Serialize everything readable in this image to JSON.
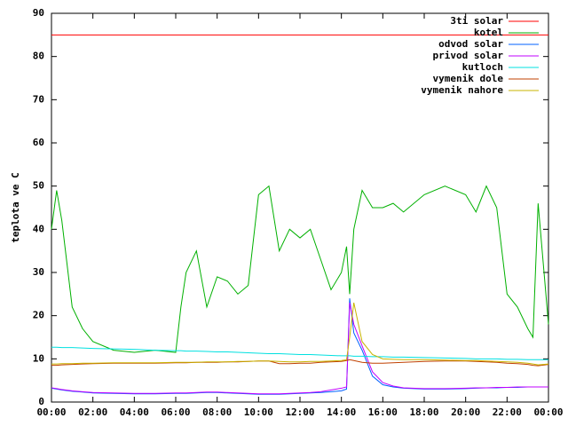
{
  "chart_data": {
    "type": "line",
    "ylabel": "teplota ve C",
    "x": [
      0,
      0.25,
      0.5,
      1,
      1.5,
      2,
      3,
      4,
      5,
      6,
      6.25,
      6.5,
      7,
      7.5,
      8,
      8.5,
      9,
      9.5,
      10,
      10.5,
      11,
      11.5,
      12,
      12.5,
      13,
      13.5,
      14,
      14.25,
      14.4,
      14.6,
      15,
      15.5,
      16,
      16.5,
      17,
      18,
      19,
      20,
      20.5,
      21,
      21.5,
      22,
      22.5,
      23,
      23.25,
      23.5,
      24
    ],
    "xlim": [
      0,
      24
    ],
    "xticks": [
      {
        "value": 0,
        "label": "00:00"
      },
      {
        "value": 2,
        "label": "02:00"
      },
      {
        "value": 4,
        "label": "04:00"
      },
      {
        "value": 6,
        "label": "06:00"
      },
      {
        "value": 8,
        "label": "08:00"
      },
      {
        "value": 10,
        "label": "10:00"
      },
      {
        "value": 12,
        "label": "12:00"
      },
      {
        "value": 14,
        "label": "14:00"
      },
      {
        "value": 16,
        "label": "16:00"
      },
      {
        "value": 18,
        "label": "18:00"
      },
      {
        "value": 20,
        "label": "20:00"
      },
      {
        "value": 22,
        "label": "22:00"
      },
      {
        "value": 24,
        "label": "00:00"
      }
    ],
    "ylim": [
      0,
      90
    ],
    "yticks": [
      0,
      10,
      20,
      30,
      40,
      50,
      60,
      70,
      80,
      90
    ],
    "grid": false,
    "legend": "top-right",
    "series": [
      {
        "name": "3ti solar",
        "color": "#ff0000",
        "values": [
          85,
          85,
          85,
          85,
          85,
          85,
          85,
          85,
          85,
          85,
          85,
          85,
          85,
          85,
          85,
          85,
          85,
          85,
          85,
          85,
          85,
          85,
          85,
          85,
          85,
          85,
          85,
          85,
          85,
          85,
          85,
          85,
          85,
          85,
          85,
          85,
          85,
          85,
          85,
          85,
          85,
          85,
          85,
          85,
          85,
          85,
          85
        ]
      },
      {
        "name": "kotel",
        "color": "#00b000",
        "values": [
          40,
          49,
          42,
          22,
          17,
          14,
          12,
          11.5,
          12,
          11.5,
          22,
          30,
          35,
          22,
          29,
          28,
          25,
          27,
          48,
          50,
          35,
          40,
          38,
          40,
          33,
          26,
          30,
          36,
          25,
          40,
          49,
          45,
          45,
          46,
          44,
          48,
          50,
          48,
          44,
          50,
          45,
          25,
          22,
          17,
          15,
          46,
          18
        ]
      },
      {
        "name": "odvod solar",
        "color": "#0060ff",
        "values": [
          3.2,
          3,
          2.8,
          2.5,
          2.3,
          2.1,
          2,
          1.9,
          1.9,
          2,
          2,
          2,
          2.1,
          2.2,
          2.2,
          2.1,
          2,
          1.9,
          1.8,
          1.8,
          1.8,
          1.9,
          2,
          2.1,
          2.2,
          2.4,
          2.6,
          3,
          24,
          16,
          12,
          6,
          4,
          3.5,
          3.2,
          3,
          3,
          3.1,
          3.2,
          3.3,
          3.3,
          3.4,
          3.4,
          3.5,
          3.5,
          3.5,
          3.5
        ]
      },
      {
        "name": "privod solar",
        "color": "#c000ff",
        "values": [
          3.3,
          3.1,
          2.9,
          2.6,
          2.4,
          2.2,
          2.1,
          2,
          2,
          2.1,
          2.1,
          2.1,
          2.2,
          2.3,
          2.3,
          2.2,
          2.1,
          2,
          1.9,
          1.9,
          1.9,
          2,
          2.1,
          2.2,
          2.4,
          2.8,
          3.2,
          3.5,
          23,
          18,
          13,
          7,
          4.5,
          3.7,
          3.3,
          3.1,
          3.1,
          3.2,
          3.3,
          3.3,
          3.4,
          3.4,
          3.5,
          3.5,
          3.5,
          3.5,
          3.5
        ]
      },
      {
        "name": "kutloch",
        "color": "#00e0e0",
        "values": [
          12.7,
          12.7,
          12.6,
          12.6,
          12.5,
          12.4,
          12.3,
          12.2,
          12,
          11.9,
          11.9,
          11.8,
          11.8,
          11.7,
          11.6,
          11.6,
          11.5,
          11.4,
          11.3,
          11.2,
          11.2,
          11.1,
          11,
          11,
          10.9,
          10.8,
          10.7,
          10.7,
          10.7,
          10.6,
          10.6,
          10.5,
          10.5,
          10.4,
          10.4,
          10.3,
          10.2,
          10.1,
          10,
          10,
          10,
          9.9,
          9.9,
          9.8,
          9.8,
          9.8,
          9.8
        ]
      },
      {
        "name": "vymenik dole",
        "color": "#c04000",
        "values": [
          8.5,
          8.5,
          8.6,
          8.7,
          8.8,
          8.9,
          9,
          9,
          9,
          9.1,
          9.1,
          9.1,
          9.2,
          9.2,
          9.2,
          9.3,
          9.3,
          9.4,
          9.5,
          9.5,
          8.9,
          8.9,
          9,
          9,
          9.2,
          9.3,
          9.4,
          9.6,
          9.8,
          9.6,
          9.2,
          9,
          9,
          9.1,
          9.2,
          9.4,
          9.5,
          9.5,
          9.4,
          9.3,
          9.2,
          9,
          8.9,
          8.7,
          8.5,
          8.4,
          8.7
        ]
      },
      {
        "name": "vymenik nahore",
        "color": "#c8b400",
        "values": [
          8.8,
          8.8,
          8.9,
          8.9,
          9,
          9,
          9.1,
          9.1,
          9.1,
          9.2,
          9.2,
          9.2,
          9.2,
          9.3,
          9.3,
          9.3,
          9.4,
          9.4,
          9.5,
          9.5,
          9.4,
          9.3,
          9.3,
          9.4,
          9.4,
          9.5,
          9.6,
          9.8,
          15,
          23,
          14,
          11,
          10,
          9.9,
          9.8,
          9.8,
          9.7,
          9.6,
          9.6,
          9.5,
          9.4,
          9.3,
          9.2,
          9,
          8.8,
          8.6,
          8.8
        ]
      }
    ]
  }
}
